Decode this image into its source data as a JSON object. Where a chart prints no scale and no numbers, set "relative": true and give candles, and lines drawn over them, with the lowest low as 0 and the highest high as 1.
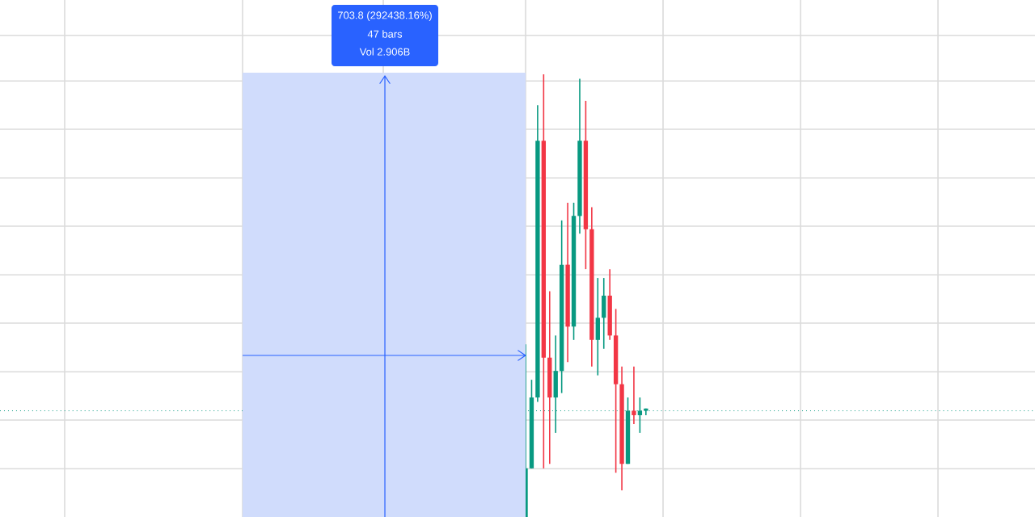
{
  "chart_data": {
    "type": "candlestick",
    "relative": true,
    "grid": true,
    "categories": [
      null,
      null,
      null,
      null,
      null,
      null,
      null,
      null,
      null,
      null,
      null,
      null,
      null,
      null,
      null,
      null,
      null,
      null,
      null,
      null,
      null
    ],
    "ohlc": [
      [
        0,
        0.39,
        0,
        0.11
      ],
      [
        0.11,
        0.31,
        0.11,
        0.27
      ],
      [
        0.27,
        0.93,
        0.26,
        0.85
      ],
      [
        0.85,
        1,
        0.11,
        0.36
      ],
      [
        0.36,
        0.51,
        0.12,
        0.27
      ],
      [
        0.27,
        0.41,
        0.19,
        0.33
      ],
      [
        0.33,
        0.67,
        0.28,
        0.57
      ],
      [
        0.57,
        0.71,
        0.35,
        0.43
      ],
      [
        0.43,
        0.71,
        0.4,
        0.68
      ],
      [
        0.68,
        0.99,
        0.64,
        0.85
      ],
      [
        0.85,
        0.94,
        0.56,
        0.65
      ],
      [
        0.65,
        0.7,
        0.34,
        0.4
      ],
      [
        0.4,
        0.54,
        0.32,
        0.45
      ],
      [
        0.45,
        0.54,
        0.38,
        0.5
      ],
      [
        0.5,
        0.56,
        0.4,
        0.41
      ],
      [
        0.41,
        0.47,
        0.1,
        0.3
      ],
      [
        0.3,
        0.34,
        0.06,
        0.12
      ],
      [
        0.12,
        0.27,
        0.12,
        0.24
      ],
      [
        0.24,
        0.34,
        0.21,
        0.23
      ],
      [
        0.23,
        0.27,
        0.19,
        0.24
      ],
      [
        0.245,
        0.245,
        0.23,
        0.24
      ]
    ],
    "colors": [
      "#089981",
      "#089981",
      "#089981",
      "#f23645",
      "#f23645",
      "#089981",
      "#089981",
      "#f23645",
      "#089981",
      "#089981",
      "#f23645",
      "#f23645",
      "#089981",
      "#089981",
      "#f23645",
      "#f23645",
      "#f23645",
      "#089981",
      "#f23645",
      "#089981",
      "#089981"
    ],
    "ref_lines": [
      {
        "axis": "y",
        "value": 0.24,
        "color": "#089981",
        "line_style": "dotted"
      }
    ],
    "annotations": [
      "703.8 (292438.16%)",
      "47 bars",
      "Vol 2.906B"
    ]
  }
}
